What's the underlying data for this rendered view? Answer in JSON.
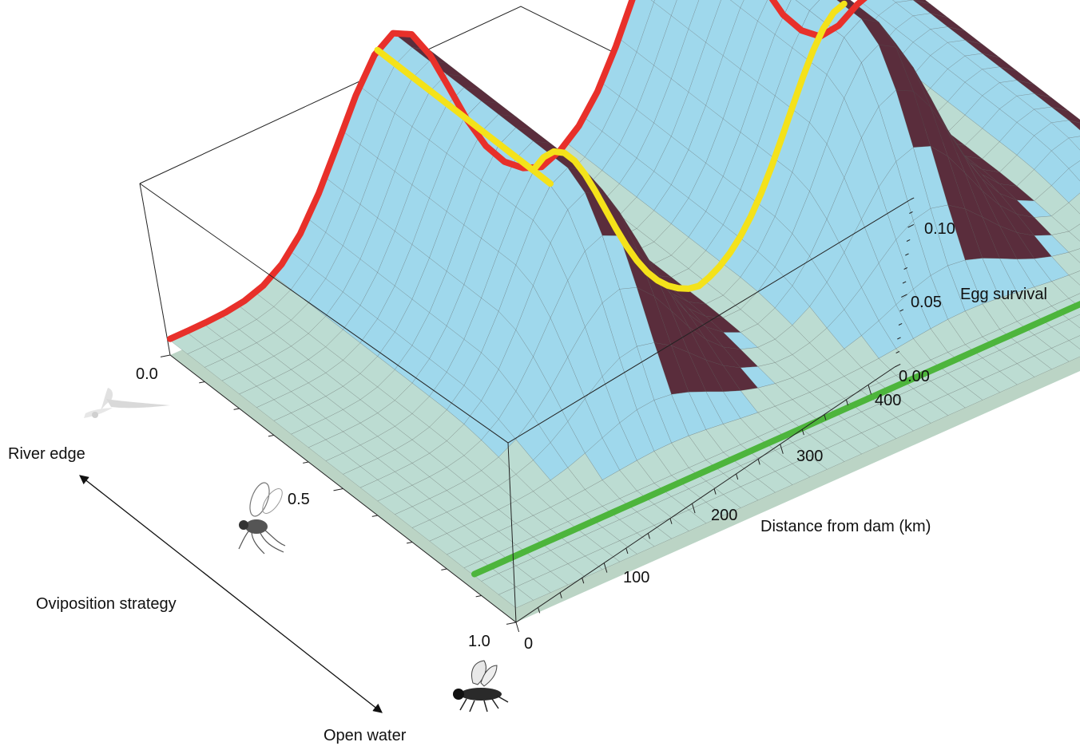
{
  "chart_data": {
    "type": "surface3d",
    "title": "",
    "x_axis": {
      "label": "Oviposition strategy",
      "ticks": [
        "0.0",
        "0.5",
        "1.0"
      ],
      "range": [
        0,
        1
      ],
      "end_labels": {
        "start": "River edge",
        "end": "Open water"
      }
    },
    "y_axis": {
      "label": "Distance from dam (km)",
      "ticks": [
        "0",
        "100",
        "200",
        "300",
        "400"
      ],
      "range": [
        0,
        430
      ]
    },
    "z_axis": {
      "label": "Egg survival",
      "ticks": [
        "0.00",
        "0.05",
        "0.10"
      ],
      "range": [
        0,
        0.12
      ]
    },
    "ridges": [
      {
        "crest_distance_km": 130,
        "peak_survival": 0.115,
        "spans_strategy": [
          0.0,
          0.55
        ]
      },
      {
        "crest_distance_km": 300,
        "peak_survival": 0.125,
        "spans_strategy": [
          0.0,
          0.55
        ]
      },
      {
        "crest_distance_km": 410,
        "peak_survival": 0.02,
        "spans_strategy": [
          0.0,
          0.45
        ]
      }
    ],
    "highlight_lines": [
      {
        "color": "#e8302a",
        "strategy": 0.0,
        "distance_km": [
          0,
          430
        ]
      },
      {
        "color": "#f4e21a",
        "strategy_range": [
          0.0,
          0.5
        ],
        "distance_km": [
          120,
          300
        ]
      },
      {
        "color": "#4db53c",
        "strategy": 0.88,
        "distance_km": [
          0,
          430
        ]
      }
    ],
    "colors": {
      "surface_top": "#9fd8ec",
      "surface_side": "#5a2d3c",
      "floor": "#b4cfbf"
    }
  },
  "icons": [
    "mayfly-icon",
    "midge-icon",
    "fly-icon"
  ]
}
